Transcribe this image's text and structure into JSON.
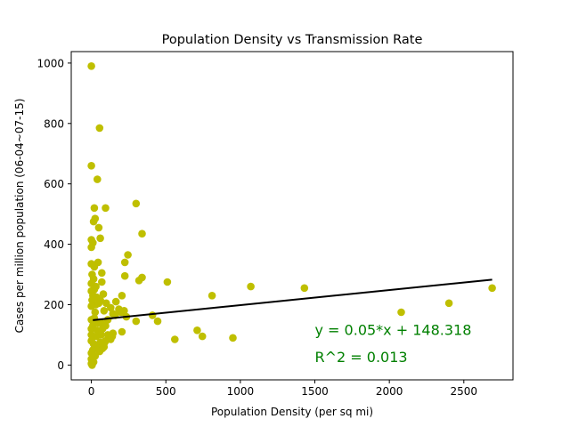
{
  "chart_data": {
    "type": "scatter",
    "title": "Population Density vs Transmission Rate",
    "xlabel": "Population Density (per sq mi)",
    "ylabel": "Cases per million population (06-04~07-15)",
    "xlim": [
      -135,
      2830
    ],
    "ylim": [
      -49,
      1038
    ],
    "xticks": [
      0,
      500,
      1000,
      1500,
      2000,
      2500
    ],
    "yticks": [
      0,
      200,
      400,
      600,
      800,
      1000
    ],
    "grid": false,
    "colors": {
      "points": "#bfbf00",
      "fit_line": "#000000",
      "annotation": "#008000"
    },
    "points": [
      [
        0,
        990
      ],
      [
        55,
        785
      ],
      [
        40,
        615
      ],
      [
        0,
        660
      ],
      [
        95,
        520
      ],
      [
        20,
        520
      ],
      [
        300,
        535
      ],
      [
        25,
        485
      ],
      [
        15,
        475
      ],
      [
        50,
        455
      ],
      [
        340,
        435
      ],
      [
        60,
        420
      ],
      [
        0,
        415
      ],
      [
        10,
        405
      ],
      [
        0,
        390
      ],
      [
        245,
        365
      ],
      [
        225,
        340
      ],
      [
        45,
        340
      ],
      [
        0,
        335
      ],
      [
        20,
        325
      ],
      [
        70,
        305
      ],
      [
        5,
        300
      ],
      [
        225,
        295
      ],
      [
        340,
        290
      ],
      [
        320,
        280
      ],
      [
        15,
        285
      ],
      [
        510,
        275
      ],
      [
        70,
        275
      ],
      [
        0,
        270
      ],
      [
        1070,
        260
      ],
      [
        1430,
        255
      ],
      [
        2690,
        255
      ],
      [
        20,
        250
      ],
      [
        0,
        245
      ],
      [
        80,
        235
      ],
      [
        205,
        230
      ],
      [
        810,
        230
      ],
      [
        35,
        225
      ],
      [
        5,
        215
      ],
      [
        60,
        215
      ],
      [
        165,
        210
      ],
      [
        100,
        205
      ],
      [
        2400,
        205
      ],
      [
        30,
        200
      ],
      [
        0,
        195
      ],
      [
        130,
        190
      ],
      [
        185,
        185
      ],
      [
        220,
        180
      ],
      [
        2080,
        175
      ],
      [
        410,
        165
      ],
      [
        145,
        170
      ],
      [
        235,
        160
      ],
      [
        20,
        155
      ],
      [
        445,
        145
      ],
      [
        300,
        145
      ],
      [
        0,
        150
      ],
      [
        65,
        140
      ],
      [
        10,
        130
      ],
      [
        95,
        130
      ],
      [
        0,
        120
      ],
      [
        40,
        115
      ],
      [
        710,
        115
      ],
      [
        205,
        110
      ],
      [
        145,
        105
      ],
      [
        0,
        100
      ],
      [
        110,
        100
      ],
      [
        745,
        95
      ],
      [
        560,
        85
      ],
      [
        950,
        90
      ],
      [
        130,
        85
      ],
      [
        0,
        80
      ],
      [
        60,
        75
      ],
      [
        90,
        75
      ],
      [
        15,
        70
      ],
      [
        35,
        60
      ],
      [
        75,
        55
      ],
      [
        10,
        50
      ],
      [
        55,
        45
      ],
      [
        0,
        40
      ],
      [
        25,
        30
      ],
      [
        0,
        20
      ],
      [
        15,
        10
      ],
      [
        0,
        5
      ],
      [
        5,
        0
      ],
      [
        95,
        80
      ],
      [
        120,
        90
      ],
      [
        200,
        175
      ],
      [
        35,
        95
      ],
      [
        85,
        180
      ],
      [
        160,
        165
      ],
      [
        45,
        140
      ],
      [
        25,
        175
      ],
      [
        75,
        120
      ],
      [
        110,
        150
      ],
      [
        140,
        95
      ],
      [
        50,
        205
      ],
      [
        30,
        260
      ],
      [
        65,
        100
      ],
      [
        10,
        230
      ],
      [
        85,
        60
      ]
    ],
    "fit_line": {
      "slope": 0.05,
      "intercept": 148.318,
      "x_range": [
        10,
        2690
      ]
    },
    "annotations": [
      "y = 0.05*x + 148.318",
      "R^2 = 0.013"
    ],
    "annotation_anchors": [
      [
        1500,
        100
      ],
      [
        1500,
        10
      ]
    ]
  }
}
